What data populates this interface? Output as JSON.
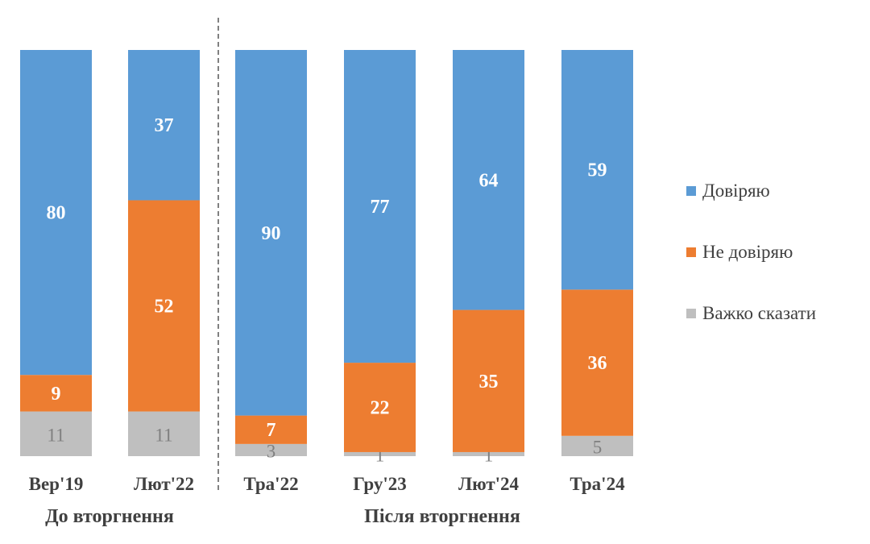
{
  "chart_data": {
    "type": "bar",
    "stacked": true,
    "categories": [
      "Вер'19",
      "Лют'22",
      "Тра'22",
      "Гру'23",
      "Лют'24",
      "Тра'24"
    ],
    "groups": [
      {
        "label": "До вторгнення",
        "categories": [
          "Вер'19",
          "Лют'22"
        ]
      },
      {
        "label": "Після вторгнення",
        "categories": [
          "Тра'22",
          "Гру'23",
          "Лют'24",
          "Тра'24"
        ]
      }
    ],
    "series": [
      {
        "name": "Важко сказати",
        "color": "#bfbfbf",
        "label_color": "#7f7f7f",
        "values": [
          11,
          11,
          3,
          1,
          1,
          5
        ]
      },
      {
        "name": "Не довіряю",
        "color": "#ed7d31",
        "label_color": "#ffffff",
        "values": [
          9,
          52,
          7,
          22,
          35,
          36
        ]
      },
      {
        "name": "Довіряю",
        "color": "#5b9bd5",
        "label_color": "#ffffff",
        "values": [
          80,
          37,
          90,
          77,
          64,
          59
        ]
      }
    ],
    "legend_order": [
      "Довіряю",
      "Не довіряю",
      "Важко сказати"
    ],
    "legend_position": "right",
    "ylim": [
      0,
      100
    ],
    "grid": false,
    "divider": "dashed line between Лют'22 and Тра'22"
  }
}
